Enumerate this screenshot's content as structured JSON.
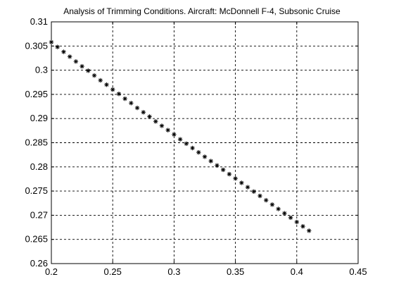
{
  "chart_data": {
    "type": "scatter",
    "title": "Analysis of Trimming Conditions. Aircraft: McDonnell F-4, Subsonic Cruise",
    "xlabel": "",
    "ylabel": "",
    "xlim": [
      0.2,
      0.45
    ],
    "ylim": [
      0.26,
      0.31
    ],
    "grid": true,
    "marker": "asterisk",
    "x_ticks": [
      "0.2",
      "0.25",
      "0.3",
      "0.35",
      "0.4",
      "0.45"
    ],
    "y_ticks": [
      "0.26",
      "0.265",
      "0.27",
      "0.275",
      "0.28",
      "0.285",
      "0.29",
      "0.295",
      "0.3",
      "0.305",
      "0.31"
    ],
    "x": [
      0.2,
      0.205,
      0.21,
      0.215,
      0.22,
      0.225,
      0.23,
      0.235,
      0.24,
      0.245,
      0.25,
      0.255,
      0.26,
      0.265,
      0.27,
      0.275,
      0.28,
      0.285,
      0.29,
      0.295,
      0.3,
      0.305,
      0.31,
      0.315,
      0.32,
      0.325,
      0.33,
      0.335,
      0.34,
      0.345,
      0.35,
      0.355,
      0.36,
      0.365,
      0.37,
      0.375,
      0.38,
      0.385,
      0.39,
      0.395,
      0.4,
      0.405,
      0.41
    ],
    "y": [
      0.3058,
      0.3048,
      0.3038,
      0.3028,
      0.3018,
      0.3008,
      0.2999,
      0.2989,
      0.2979,
      0.297,
      0.296,
      0.2951,
      0.2941,
      0.2932,
      0.2922,
      0.2913,
      0.2904,
      0.2894,
      0.2885,
      0.2876,
      0.2867,
      0.2857,
      0.2848,
      0.2839,
      0.283,
      0.2821,
      0.2812,
      0.2803,
      0.2794,
      0.2785,
      0.2776,
      0.2767,
      0.2758,
      0.2749,
      0.274,
      0.2731,
      0.2722,
      0.2713,
      0.2704,
      0.2695,
      0.2686,
      0.2677,
      0.2668
    ]
  }
}
